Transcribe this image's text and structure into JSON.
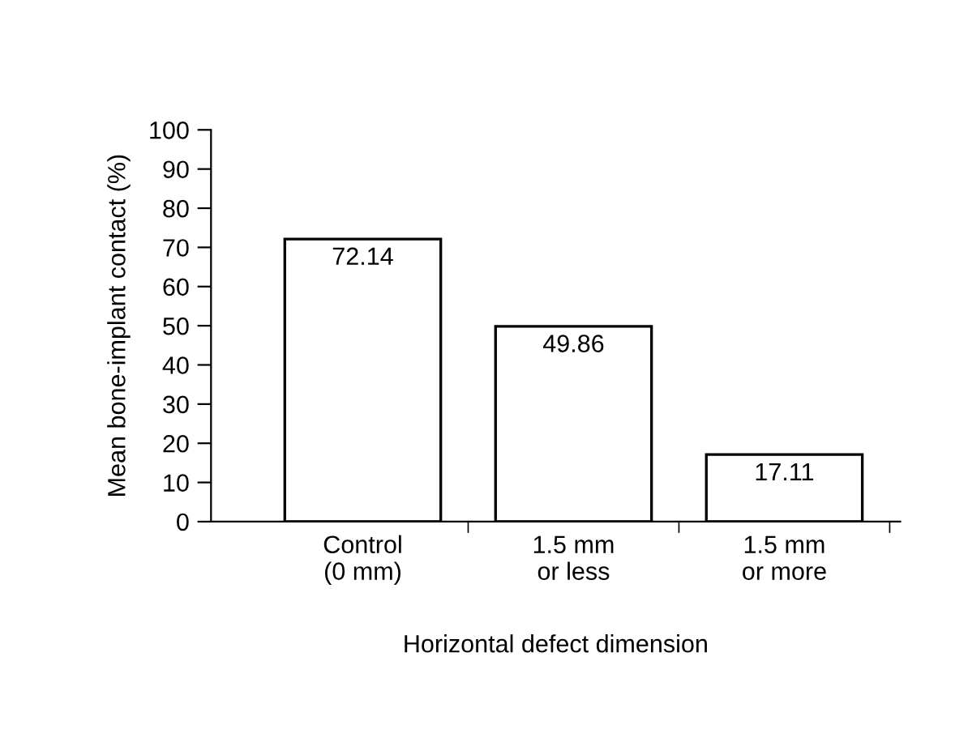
{
  "chart_data": {
    "type": "bar",
    "xlabel": "Horizontal defect dimension",
    "ylabel": "Mean bone-implant contact (%)",
    "categories": [
      "Control\n(0 mm)",
      "1.5 mm\nor less",
      "1.5 mm\nor more"
    ],
    "values": [
      72.14,
      49.86,
      17.11
    ],
    "color": "#ffffff",
    "ylim": [
      0,
      100
    ],
    "yticks": [
      0,
      10,
      20,
      30,
      40,
      50,
      60,
      70,
      80,
      90,
      100
    ],
    "grid": false,
    "data_labels": true
  }
}
